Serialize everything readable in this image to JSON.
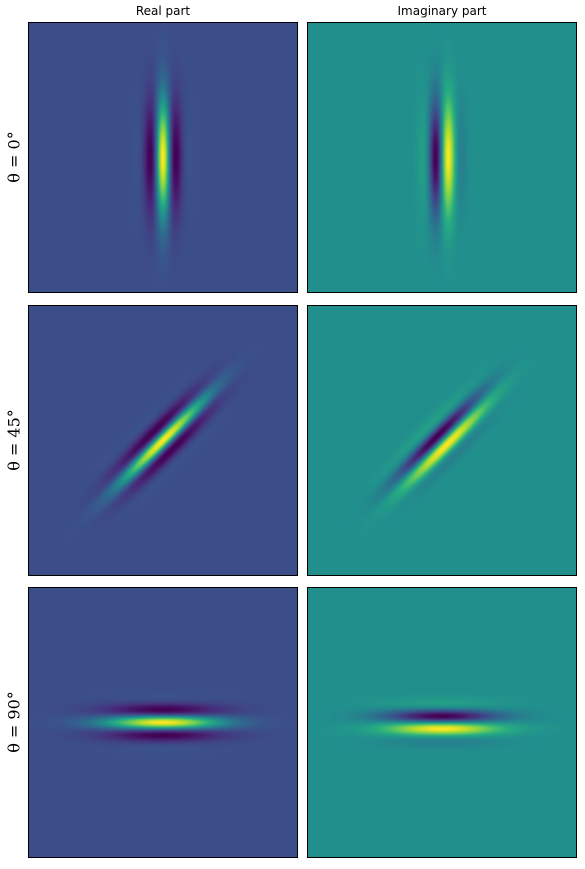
{
  "chart_data": {
    "type": "heatmap",
    "colormap": "viridis",
    "columns": [
      "Real part",
      "Imaginary part"
    ],
    "rows": [
      {
        "label": "θ = 0°",
        "theta_deg": 0
      },
      {
        "label": "θ = 45°",
        "theta_deg": 45
      },
      {
        "label": "θ = 90°",
        "theta_deg": 90
      }
    ],
    "grid": false,
    "background_values": {
      "real": 0.24,
      "imaginary": 0.5
    }
  }
}
